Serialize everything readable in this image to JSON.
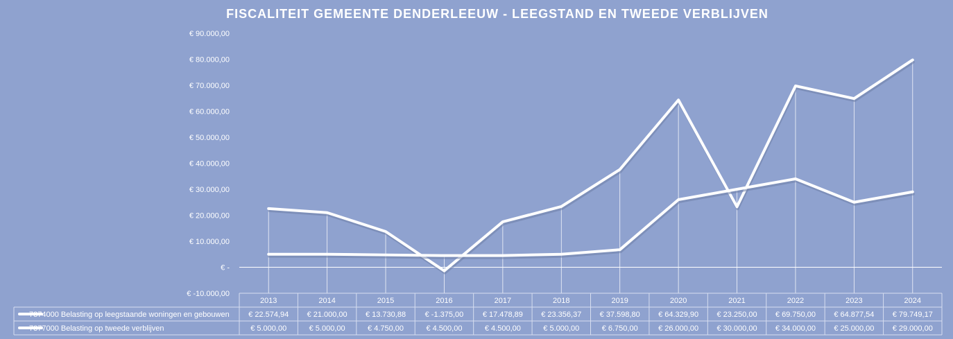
{
  "chart_data": {
    "type": "line",
    "title": "FISCALITEIT GEMEENTE DENDERLEEUW - LEEGSTAND EN TWEEDE VERBLIJVEN",
    "xlabel": "",
    "ylabel": "",
    "ylim": [
      -10000,
      90000
    ],
    "y_ticks": [
      -10000,
      0,
      10000,
      20000,
      30000,
      40000,
      50000,
      60000,
      70000,
      80000,
      90000
    ],
    "y_tick_labels": [
      "€ -10.000,00",
      "€ -",
      "€ 10.000,00",
      "€ 20.000,00",
      "€ 30.000,00",
      "€ 40.000,00",
      "€ 50.000,00",
      "€ 60.000,00",
      "€ 70.000,00",
      "€ 80.000,00",
      "€ 90.000,00"
    ],
    "categories": [
      "2013",
      "2014",
      "2015",
      "2016",
      "2017",
      "2018",
      "2019",
      "2020",
      "2021",
      "2022",
      "2023",
      "2024"
    ],
    "grid": false,
    "legend": "data-table-below",
    "series": [
      {
        "name": "7374000 Belasting op leegstaande woningen en gebouwen",
        "color": "#ffffff",
        "values": [
          22574.94,
          21000.0,
          13730.88,
          -1375.0,
          17478.89,
          23356.37,
          37598.8,
          64329.9,
          23250.0,
          69750.0,
          64877.54,
          79749.17
        ],
        "labels": [
          "€ 22.574,94",
          "€ 21.000,00",
          "€ 13.730,88",
          "€ -1.375,00",
          "€ 17.478,89",
          "€ 23.356,37",
          "€ 37.598,80",
          "€ 64.329,90",
          "€ 23.250,00",
          "€ 69.750,00",
          "€ 64.877,54",
          "€ 79.749,17"
        ]
      },
      {
        "name": "7377000 Belasting op tweede verblijven",
        "color": "#ffffff",
        "values": [
          5000,
          5000,
          4750,
          4500,
          4500,
          5000,
          6750,
          26000,
          30000,
          34000,
          25000,
          29000
        ],
        "labels": [
          "€ 5.000,00",
          "€ 5.000,00",
          "€ 4.750,00",
          "€ 4.500,00",
          "€ 4.500,00",
          "€ 5.000,00",
          "€ 6.750,00",
          "€ 26.000,00",
          "€ 30.000,00",
          "€ 34.000,00",
          "€ 25.000,00",
          "€ 29.000,00"
        ]
      }
    ]
  }
}
